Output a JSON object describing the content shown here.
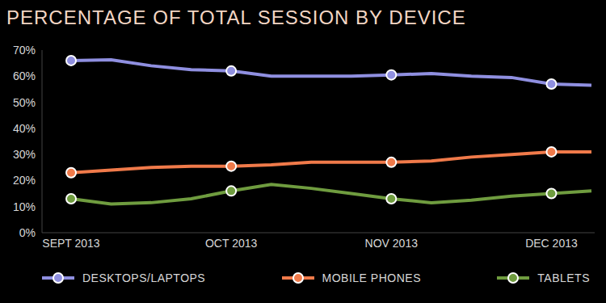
{
  "chart_data": {
    "type": "line",
    "title": "PERCENTAGE OF TOTAL SESSION BY DEVICE",
    "categories": [
      "SEPT 2013",
      null,
      null,
      null,
      "OCT 2013",
      null,
      null,
      null,
      "NOV 2013",
      null,
      null,
      null,
      "DEC 2013",
      null
    ],
    "series": [
      {
        "name": "DESKTOPS/LAPTOPS",
        "color": "#8f8fe0",
        "values": [
          66,
          66.3,
          64,
          62.5,
          62,
          60,
          60,
          60,
          60.5,
          61,
          60,
          59.5,
          57,
          56.5
        ]
      },
      {
        "name": "MOBILE PHONES",
        "color": "#f07a4a",
        "values": [
          23,
          24,
          25,
          25.5,
          25.5,
          26,
          27,
          27,
          27,
          27.5,
          29,
          30,
          31,
          31
        ]
      },
      {
        "name": "TABLETS",
        "color": "#6f9c3f",
        "values": [
          13,
          11,
          11.5,
          13,
          16,
          18.5,
          17,
          15,
          13,
          11.5,
          12.5,
          14,
          15,
          16
        ]
      }
    ],
    "ylim": [
      0,
      70
    ],
    "yticks": [
      {
        "value": 0,
        "label": "0%"
      },
      {
        "value": 10,
        "label": "10%"
      },
      {
        "value": 20,
        "label": "20%"
      },
      {
        "value": 30,
        "label": "30%"
      },
      {
        "value": 40,
        "label": "40%"
      },
      {
        "value": 50,
        "label": "50%"
      },
      {
        "value": 60,
        "label": "60%"
      },
      {
        "value": 70,
        "label": "70%"
      }
    ],
    "grid": false,
    "legend": "bottom",
    "marker": "circle"
  }
}
